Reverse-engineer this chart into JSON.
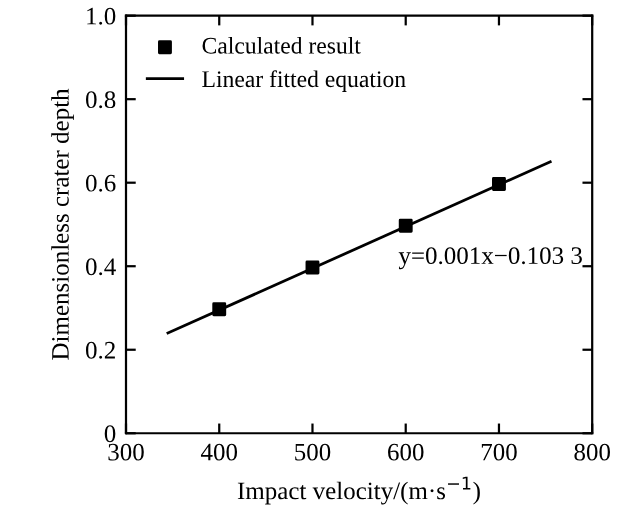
{
  "chart_data": {
    "type": "scatter",
    "xlabel": "Impact velocity/(m·s$^{−1}$)",
    "ylabel": "Dimensionless crater depth",
    "xlim": [
      300,
      800
    ],
    "ylim": [
      0,
      1.0
    ],
    "xticks": [
      300,
      400,
      500,
      600,
      700,
      800
    ],
    "yticks": [
      0,
      0.2,
      0.4,
      0.6,
      0.8,
      {
        "value": 1.0,
        "label": "1.0"
      }
    ],
    "grid": false,
    "legend": "top left",
    "series": [
      {
        "name": "Calculated result",
        "marker": "square",
        "color": "#000000",
        "x": [
          400,
          500,
          600,
          700
        ],
        "values": [
          0.297,
          0.397,
          0.497,
          0.597
        ]
      },
      {
        "name": "Linear fitted equation",
        "type": "line",
        "color": "#000000",
        "line_style": "solid",
        "marker": "none",
        "x": [
          345,
          755
        ],
        "values": [
          0.24,
          0.65
        ]
      }
    ],
    "annotations": [
      "y=0.001x−0.103 3"
    ]
  }
}
